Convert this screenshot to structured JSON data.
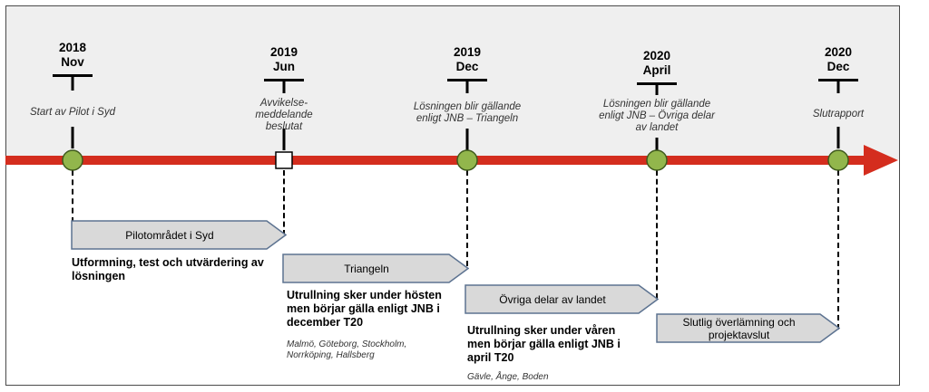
{
  "milestones": [
    {
      "year": "2018",
      "month": "Nov",
      "event": "Start av Pilot i Syd",
      "marker": "circle"
    },
    {
      "year": "2019",
      "month": "Jun",
      "event": "Avvikelse- meddelande  beslutat",
      "marker": "square"
    },
    {
      "year": "2019",
      "month": "Dec",
      "event": "Lösningen  blir gällande enligt  JNB – Triangeln",
      "marker": "circle"
    },
    {
      "year": "2020",
      "month": "April",
      "event": "Lösningen  blir gällande enligt  JNB – Övriga delar  av landet",
      "marker": "circle"
    },
    {
      "year": "2020",
      "month": "Dec",
      "event": "Slutrapport",
      "marker": "circle"
    }
  ],
  "phases": [
    {
      "label": "Pilotområdet  i Syd",
      "description": "Utformning, test och utvärdering av lösningen",
      "cities": ""
    },
    {
      "label": "Triangeln",
      "description": "Utrullning sker under hösten men börjar gälla enligt JNB i december T20",
      "cities": "Malmö, Göteborg, Stockholm, Norrköping, Hallsberg"
    },
    {
      "label": "Övriga delar  av landet",
      "description": "Utrullning sker under våren men börjar gälla enligt JNB i april T20",
      "cities": "Gävle, Ånge, Boden"
    },
    {
      "label": "Slutlig överlämning  och projektavslut",
      "description": "",
      "cities": ""
    }
  ],
  "colors": {
    "timeline": "#d42d1e",
    "milestone_fill": "#92b64c",
    "milestone_stroke": "#3f5a1c",
    "phase_fill": "#d9d9d9",
    "phase_stroke": "#5d7391",
    "band": "#efefef"
  }
}
